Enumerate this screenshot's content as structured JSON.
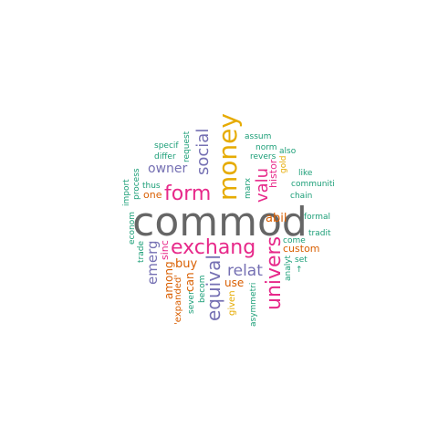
{
  "colors": {
    "gray": "#666666",
    "pink": "#e7298a",
    "gold": "#e6ab02",
    "purple": "#7570b3",
    "teal": "#1b9e77",
    "orange": "#d95f02"
  },
  "words": [
    {
      "text": "commod",
      "color": "gray"
    },
    {
      "text": "money",
      "color": "gold"
    },
    {
      "text": "exchang",
      "color": "pink"
    },
    {
      "text": "form",
      "color": "pink"
    },
    {
      "text": "univers",
      "color": "pink"
    },
    {
      "text": "equival",
      "color": "purple"
    },
    {
      "text": "valu",
      "color": "pink"
    },
    {
      "text": "social",
      "color": "purple"
    },
    {
      "text": "relat",
      "color": "purple"
    },
    {
      "text": "owner",
      "color": "purple"
    },
    {
      "text": "emerg",
      "color": "purple"
    },
    {
      "text": "buy",
      "color": "orange"
    },
    {
      "text": "among",
      "color": "orange"
    },
    {
      "text": "abil",
      "color": "orange"
    },
    {
      "text": "use",
      "color": "orange"
    },
    {
      "text": "custom",
      "color": "orange"
    },
    {
      "text": "one",
      "color": "orange"
    },
    {
      "text": "can",
      "color": "orange"
    },
    {
      "text": "histor",
      "color": "pink"
    },
    {
      "text": "sinc",
      "color": "pink"
    },
    {
      "text": "'expanded'",
      "color": "orange"
    },
    {
      "text": "given",
      "color": "gold"
    },
    {
      "text": "gold",
      "color": "gold"
    },
    {
      "text": "also",
      "color": "teal"
    },
    {
      "text": "norm",
      "color": "teal"
    },
    {
      "text": "assum",
      "color": "teal"
    },
    {
      "text": "revers",
      "color": "teal"
    },
    {
      "text": "like",
      "color": "teal"
    },
    {
      "text": "communiti",
      "color": "teal"
    },
    {
      "text": "chain",
      "color": "teal"
    },
    {
      "text": "formal",
      "color": "teal"
    },
    {
      "text": "tradit",
      "color": "teal"
    },
    {
      "text": "come",
      "color": "teal"
    },
    {
      "text": "set",
      "color": "teal"
    },
    {
      "text": "↑",
      "color": "teal"
    },
    {
      "text": "analyt",
      "color": "teal"
    },
    {
      "text": "asymmetri",
      "color": "teal"
    },
    {
      "text": "becom",
      "color": "teal"
    },
    {
      "text": "sever",
      "color": "teal"
    },
    {
      "text": "trade",
      "color": "teal"
    },
    {
      "text": "econom",
      "color": "teal"
    },
    {
      "text": "import",
      "color": "teal"
    },
    {
      "text": "process",
      "color": "teal"
    },
    {
      "text": "thus",
      "color": "teal"
    },
    {
      "text": "specif",
      "color": "teal"
    },
    {
      "text": "differ",
      "color": "teal"
    },
    {
      "text": "request",
      "color": "teal"
    },
    {
      "text": "marx",
      "color": "teal"
    }
  ]
}
